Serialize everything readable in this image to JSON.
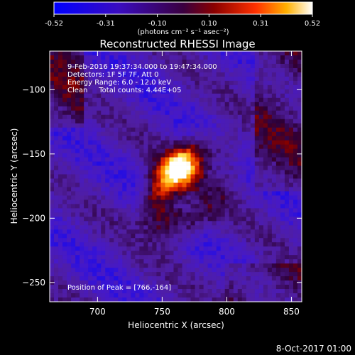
{
  "chart_data": {
    "type": "heatmap",
    "title": "Reconstructed RHESSI Image",
    "xlabel": "Heliocentric X (arcsec)",
    "ylabel": "Heliocentric Y (arcsec)",
    "xlim": [
      663,
      858
    ],
    "ylim": [
      -265,
      -70
    ],
    "x_ticks": [
      700,
      750,
      800,
      850
    ],
    "y_ticks": [
      -100,
      -150,
      -200,
      -250
    ],
    "colorbar": {
      "ticks": [
        "-0.52",
        "-0.31",
        "-0.10",
        "0.10",
        "0.31",
        "0.52"
      ],
      "range": [
        -0.52,
        0.52
      ],
      "unit_label": "(photons cm⁻² s⁻¹ asec⁻²)"
    },
    "info_lines": [
      "9-Feb-2016 19:37:34.000 to 19:47:34.000",
      "Detectors: 1F 5F 7F, Att 0",
      "Energy Range: 6.0 - 12.0 keV",
      "Clean     Total counts: 4.44E+05"
    ],
    "peak_label": "Position of Peak = [766,-164]",
    "peak_position": [
      766,
      -164
    ],
    "footer_date": "8-Oct-2017 01:00"
  }
}
